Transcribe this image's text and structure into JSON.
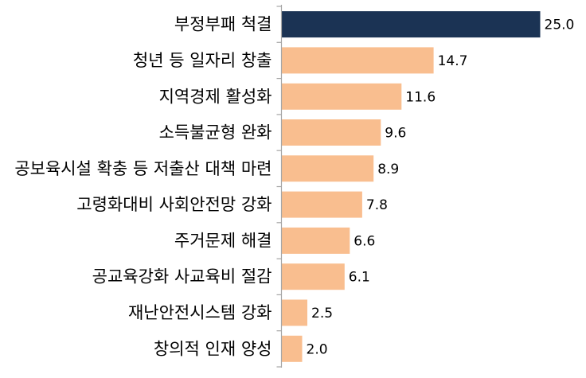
{
  "chart_data": {
    "type": "bar",
    "orientation": "horizontal",
    "categories": [
      "부정부패 척결",
      "청년 등 일자리 창출",
      "지역경제 활성화",
      "소득불균형 완화",
      "공보육시설 확충 등 저출산 대책 마련",
      "고령화대비 사회안전망 강화",
      "주거문제 해결",
      "공교육강화 사교육비 절감",
      "재난안전시스템 강화",
      "창의적 인재 양성"
    ],
    "values": [
      25.0,
      14.7,
      11.6,
      9.6,
      8.9,
      7.8,
      6.6,
      6.1,
      2.5,
      2.0
    ],
    "value_labels": [
      "25.0",
      "14.7",
      "11.6",
      "9.6",
      "8.9",
      "7.8",
      "6.6",
      "6.1",
      "2.5",
      "2.0"
    ],
    "highlight_index": 0,
    "colors": {
      "highlight": "#1b3354",
      "default": "#f9be8f",
      "axis": "#a6a6a6"
    },
    "title": "",
    "xlabel": "",
    "ylabel": "",
    "xlim": [
      0,
      25.0
    ],
    "grid": false,
    "legend": "none"
  }
}
